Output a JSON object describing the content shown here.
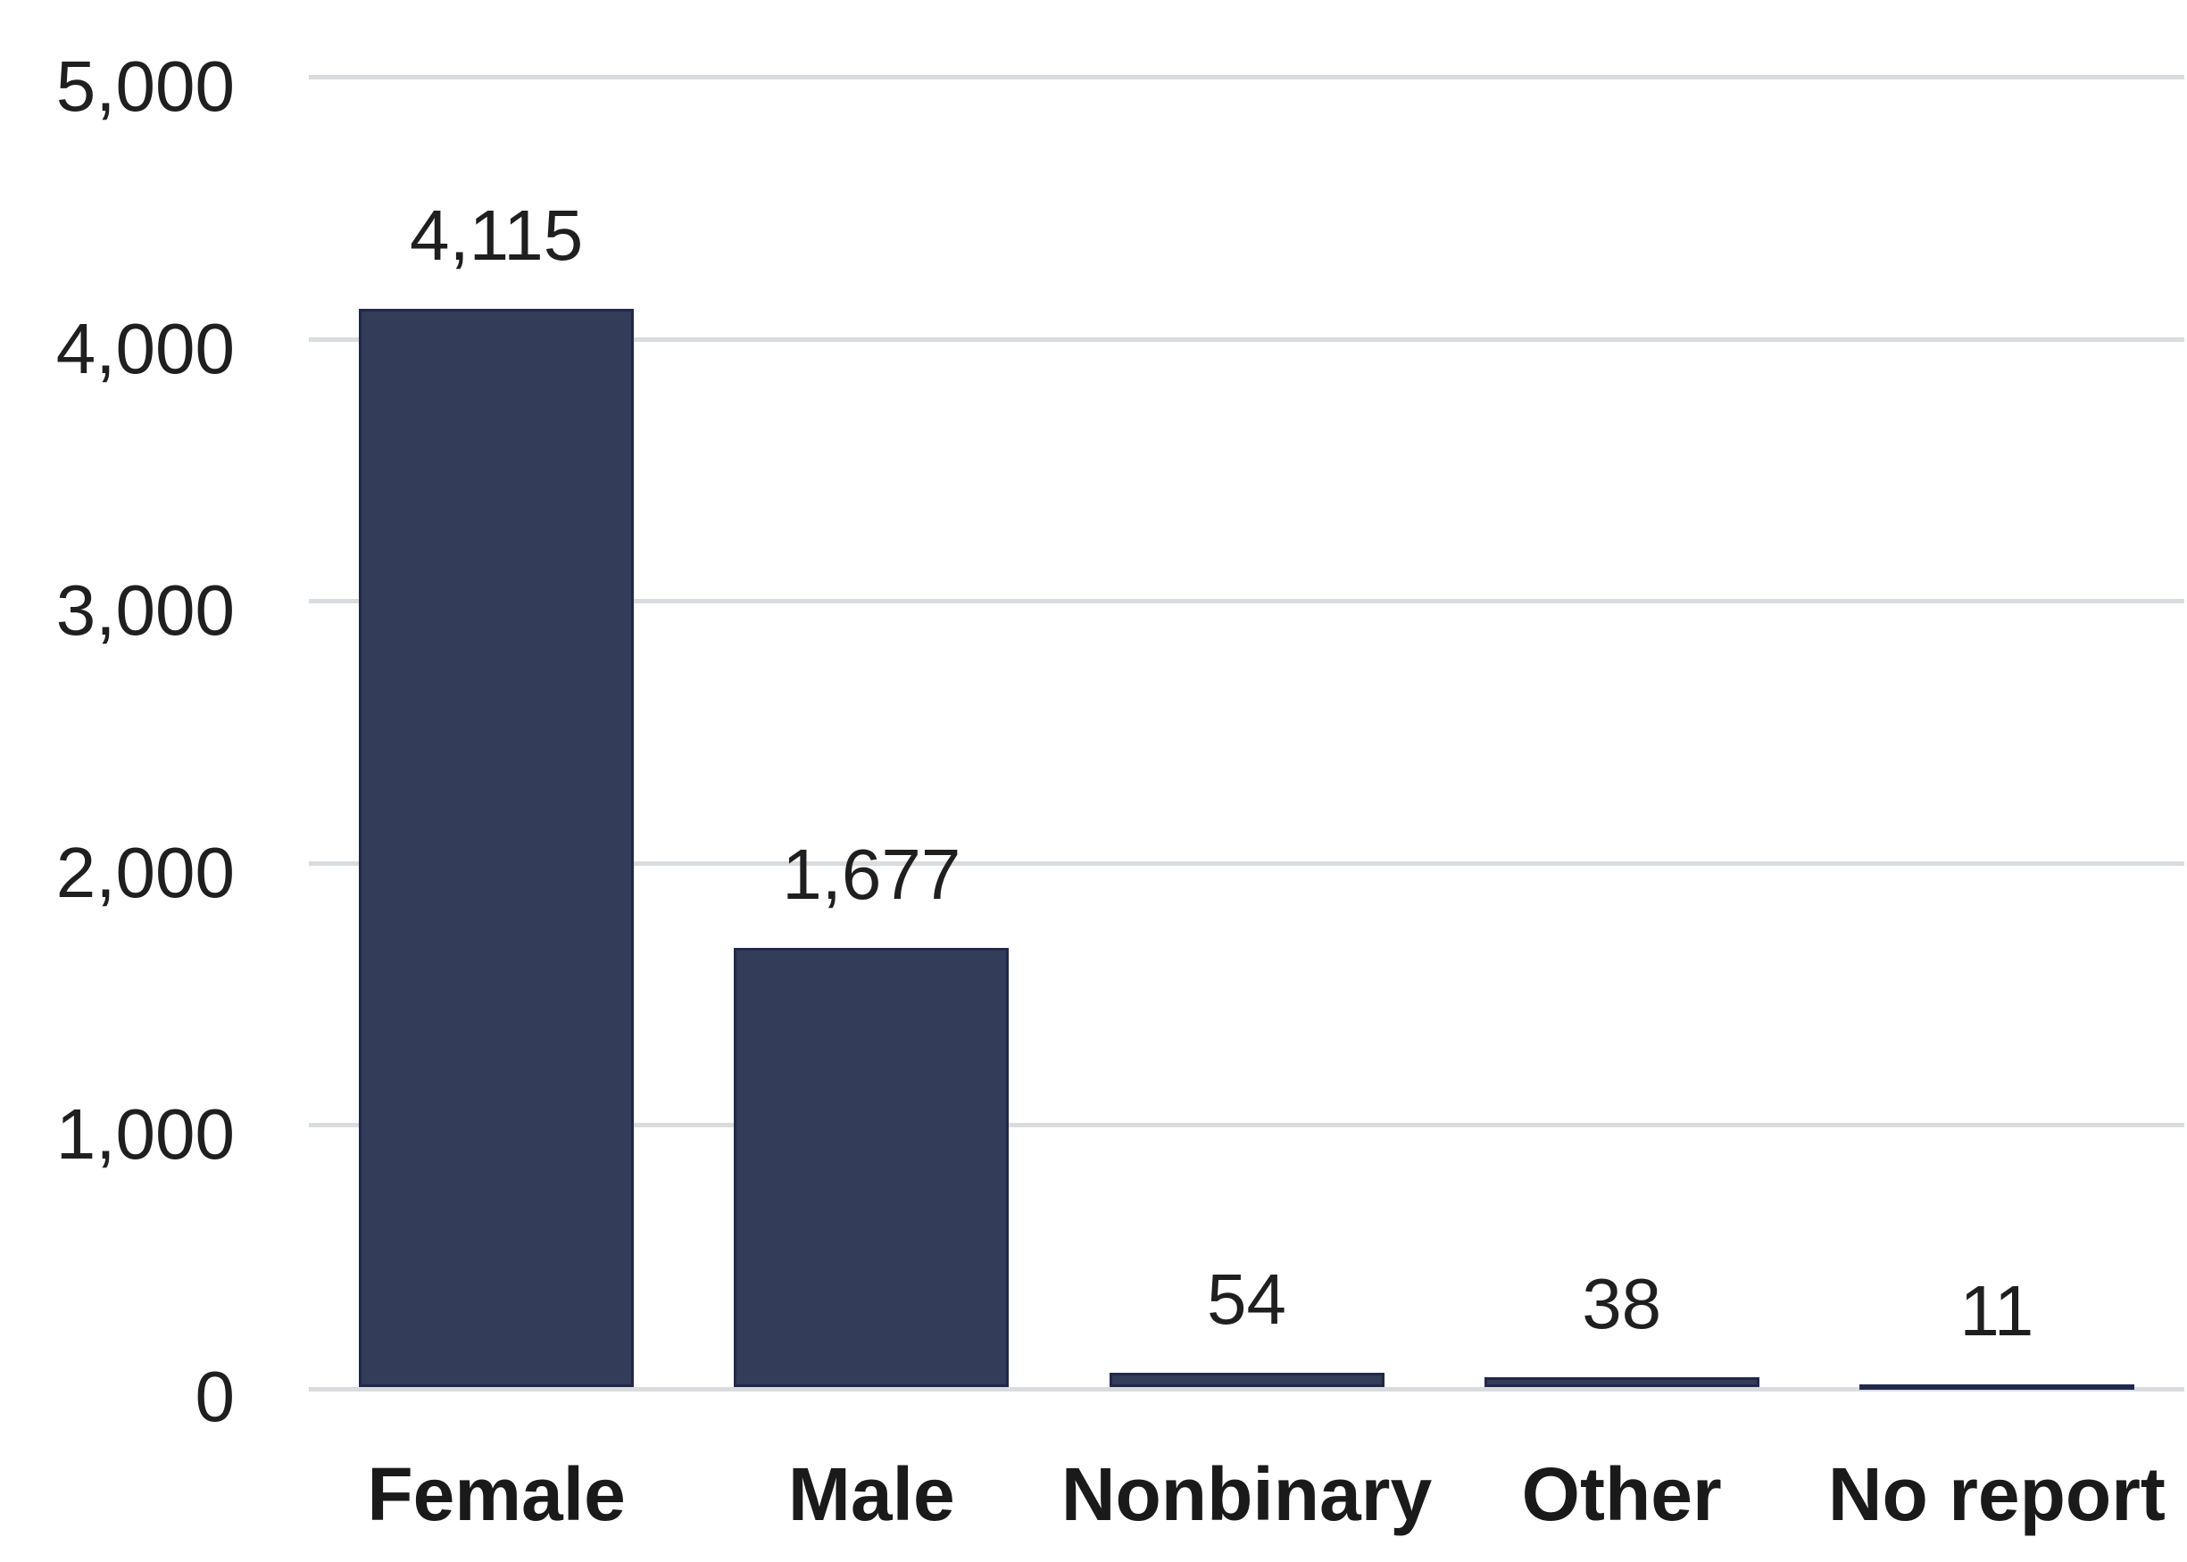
{
  "chart_data": {
    "type": "bar",
    "title": "",
    "xlabel": "",
    "ylabel": "",
    "categories": [
      "Female",
      "Male",
      "Nonbinary",
      "Other",
      "No report"
    ],
    "values": [
      4115,
      1677,
      54,
      38,
      11
    ],
    "value_labels": [
      "4,115",
      "1,677",
      "54",
      "38",
      "11"
    ],
    "ylim": [
      0,
      5000
    ],
    "ytick_values": [
      0,
      1000,
      2000,
      3000,
      4000,
      5000
    ],
    "ytick_labels": [
      "0",
      "1,000",
      "2,000",
      "3,000",
      "4,000",
      "5,000"
    ],
    "grid": "horizontal",
    "legend": "none",
    "colors": {
      "background": "#ffffff",
      "bar_fill": "#333C58",
      "bar_border": "#20294A",
      "gridline": "#D8DCDF",
      "tick_text": "#1F1F1F",
      "value_text": "#1F1F1F",
      "category_text": "#1A1A1A"
    }
  }
}
